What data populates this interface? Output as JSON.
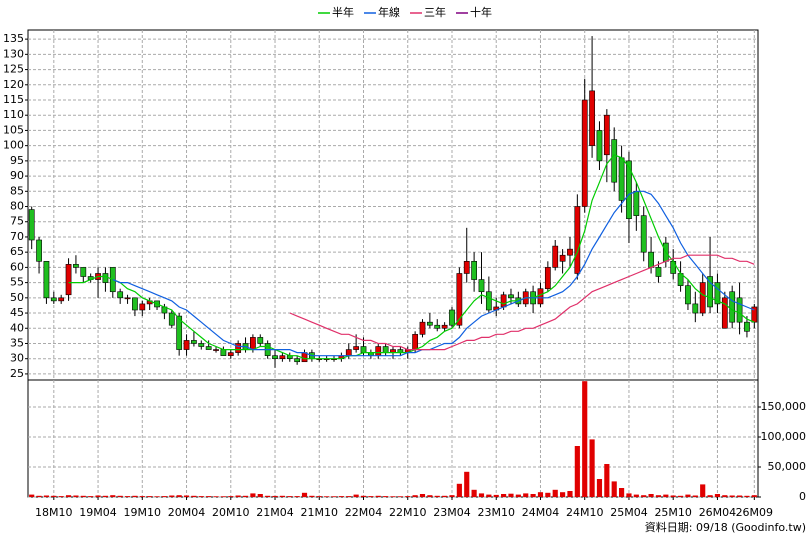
{
  "chart_data": {
    "type": "candlestick",
    "categories": [
      null,
      null,
      null,
      "18M10",
      null,
      null,
      null,
      null,
      null,
      "19M04",
      null,
      null,
      null,
      null,
      null,
      "19M10",
      null,
      null,
      null,
      null,
      null,
      "20M04",
      null,
      null,
      null,
      null,
      null,
      "20M10",
      null,
      null,
      null,
      null,
      null,
      "21M04",
      null,
      null,
      null,
      null,
      null,
      "21M10",
      null,
      null,
      null,
      null,
      null,
      "22M04",
      null,
      null,
      null,
      null,
      null,
      "22M10",
      null,
      null,
      null,
      null,
      null,
      "23M04",
      null,
      null,
      null,
      null,
      null,
      "23M10",
      null,
      null,
      null,
      null,
      null,
      "24M04",
      null,
      null,
      null,
      null,
      null,
      "24M10",
      null,
      null,
      null,
      null,
      null,
      "25M04",
      null,
      null,
      null,
      null,
      null,
      "25M10",
      null,
      null,
      null,
      null,
      null,
      "26M04",
      null,
      null,
      null,
      null,
      "26M09"
    ],
    "open": [
      79,
      69,
      62,
      50,
      49,
      51,
      61,
      60,
      57,
      56,
      58,
      60,
      52,
      50,
      50,
      46,
      48,
      49,
      47,
      45,
      44,
      33,
      36,
      35,
      34,
      33,
      33,
      31,
      32,
      35,
      33,
      37,
      35,
      31,
      30,
      31,
      30,
      29,
      32,
      30,
      30,
      30,
      30,
      31,
      33,
      34,
      32,
      31,
      34,
      32,
      33,
      32,
      33,
      38,
      42,
      41,
      40,
      46,
      41,
      58,
      62,
      56,
      52,
      46,
      47,
      51,
      50,
      48,
      52,
      48,
      53,
      60,
      62,
      64,
      58,
      80,
      100,
      105,
      97,
      102,
      96,
      95,
      85,
      77,
      65,
      60,
      68,
      62,
      58,
      54,
      48,
      45,
      57,
      55,
      40,
      52,
      50,
      42,
      42
    ],
    "high": [
      80,
      70,
      62,
      52,
      51,
      63,
      64,
      60,
      58,
      60,
      60,
      60,
      53,
      51,
      50,
      49,
      50,
      49,
      48,
      46,
      45,
      38,
      39,
      36,
      36,
      34,
      34,
      33,
      36,
      37,
      38,
      38,
      36,
      33,
      32,
      32,
      31,
      33,
      33,
      31,
      31,
      31,
      32,
      35,
      38,
      37,
      33,
      35,
      35,
      34,
      34,
      34,
      39,
      43,
      45,
      43,
      42,
      47,
      60,
      73,
      65,
      65,
      57,
      50,
      52,
      53,
      52,
      53,
      54,
      55,
      62,
      69,
      66,
      70,
      84,
      122,
      136,
      108,
      112,
      106,
      100,
      98,
      88,
      80,
      70,
      62,
      70,
      66,
      62,
      56,
      52,
      58,
      70,
      58,
      52,
      54,
      55,
      44,
      48
    ],
    "low": [
      66,
      58,
      48,
      48,
      48,
      49,
      58,
      55,
      55,
      50,
      52,
      50,
      48,
      48,
      44,
      44,
      46,
      46,
      43,
      40,
      31,
      31,
      34,
      33,
      33,
      32,
      31,
      30,
      31,
      32,
      32,
      34,
      30,
      27,
      29,
      29,
      28,
      29,
      29,
      29,
      29,
      29,
      29,
      30,
      32,
      31,
      30,
      30,
      31,
      30,
      31,
      30,
      32,
      37,
      40,
      39,
      39,
      40,
      40,
      55,
      52,
      48,
      45,
      44,
      46,
      48,
      47,
      47,
      45,
      47,
      52,
      59,
      58,
      60,
      56,
      78,
      96,
      92,
      88,
      85,
      78,
      68,
      72,
      62,
      58,
      55,
      60,
      56,
      52,
      46,
      42,
      44,
      45,
      45,
      40,
      40,
      38,
      37,
      40
    ],
    "close": [
      69,
      62,
      50,
      49,
      50,
      61,
      60,
      57,
      56,
      58,
      55,
      52,
      50,
      50,
      46,
      48,
      49,
      47,
      45,
      41,
      33,
      36,
      35,
      34,
      33,
      33,
      31,
      32,
      35,
      33,
      37,
      35,
      31,
      30,
      31,
      30,
      29,
      32,
      30,
      30,
      30,
      30,
      31,
      33,
      34,
      32,
      31,
      34,
      32,
      33,
      32,
      33,
      38,
      42,
      41,
      40,
      41,
      41,
      58,
      62,
      56,
      52,
      46,
      47,
      51,
      50,
      48,
      52,
      48,
      53,
      60,
      67,
      64,
      66,
      80,
      115,
      118,
      95,
      110,
      88,
      82,
      76,
      77,
      65,
      60,
      57,
      62,
      58,
      54,
      48,
      45,
      55,
      47,
      48,
      50,
      42,
      42,
      39,
      47
    ],
    "up_color": "#e00000",
    "down_color": "#1fbf1f",
    "ylim": [
      23,
      138
    ],
    "yticks": [
      25,
      30,
      35,
      40,
      45,
      50,
      55,
      60,
      65,
      70,
      75,
      80,
      85,
      90,
      95,
      100,
      105,
      110,
      115,
      120,
      125,
      130,
      135
    ],
    "grid": true,
    "series": [
      {
        "name": "半年",
        "color": "#00cc00",
        "values": [
          null,
          null,
          null,
          null,
          null,
          55,
          55,
          55,
          56,
          57,
          57,
          56,
          55,
          53,
          52,
          50,
          49,
          48,
          47,
          46,
          43,
          41,
          39,
          37,
          35,
          34,
          33,
          33,
          33,
          33,
          33,
          34,
          34,
          33,
          32,
          31,
          31,
          30,
          30,
          30,
          30,
          30,
          30,
          31,
          31,
          32,
          32,
          32,
          32,
          32,
          32,
          32,
          33,
          34,
          36,
          37,
          39,
          40,
          43,
          46,
          49,
          51,
          50,
          49,
          48,
          49,
          49,
          50,
          50,
          51,
          52,
          54,
          57,
          60,
          65,
          72,
          82,
          88,
          94,
          97,
          96,
          93,
          88,
          82,
          76,
          70,
          65,
          62,
          58,
          56,
          53,
          51,
          50,
          49,
          48,
          46,
          45,
          43,
          42
        ]
      },
      {
        "name": "年線",
        "color": "#1060e0",
        "values": [
          null,
          null,
          null,
          null,
          null,
          null,
          null,
          null,
          null,
          null,
          null,
          56,
          55,
          55,
          54,
          53,
          52,
          51,
          50,
          49,
          47,
          46,
          44,
          42,
          40,
          38,
          36,
          35,
          34,
          34,
          33,
          33,
          33,
          33,
          33,
          33,
          32,
          32,
          31,
          31,
          31,
          31,
          31,
          31,
          31,
          31,
          31,
          31,
          31,
          31,
          31,
          32,
          32,
          33,
          33,
          34,
          35,
          35,
          37,
          40,
          42,
          44,
          45,
          46,
          47,
          48,
          49,
          50,
          50,
          50,
          50,
          51,
          52,
          54,
          57,
          61,
          66,
          70,
          74,
          78,
          81,
          84,
          85,
          85,
          84,
          81,
          77,
          73,
          68,
          64,
          61,
          58,
          55,
          53,
          51,
          49,
          48,
          47,
          46
        ]
      },
      {
        "name": "三年",
        "color": "#e0306a",
        "values": [
          null,
          null,
          null,
          null,
          null,
          null,
          null,
          null,
          null,
          null,
          null,
          null,
          null,
          null,
          null,
          null,
          null,
          null,
          null,
          null,
          null,
          null,
          null,
          null,
          null,
          null,
          null,
          null,
          null,
          null,
          null,
          null,
          null,
          null,
          null,
          45,
          44,
          43,
          42,
          41,
          40,
          39,
          38,
          38,
          37,
          36,
          36,
          35,
          35,
          34,
          34,
          33,
          33,
          33,
          33,
          33,
          33,
          34,
          35,
          36,
          36,
          37,
          37,
          38,
          38,
          39,
          39,
          40,
          40,
          41,
          42,
          43,
          45,
          47,
          48,
          50,
          52,
          53,
          54,
          55,
          56,
          57,
          58,
          59,
          60,
          61,
          62,
          63,
          63,
          64,
          64,
          64,
          64,
          64,
          63,
          63,
          62,
          62,
          61
        ]
      },
      {
        "name": "十年",
        "color": "#800080"
      }
    ],
    "volume": {
      "color": "#e00000",
      "values": [
        4000,
        2000,
        2500,
        2000,
        1500,
        3000,
        2500,
        2000,
        1500,
        2500,
        2000,
        3000,
        2000,
        1500,
        2000,
        1500,
        1500,
        1200,
        1500,
        2500,
        3000,
        2500,
        2000,
        1500,
        1500,
        1200,
        1200,
        1500,
        2500,
        2000,
        6000,
        5000,
        2000,
        1800,
        2000,
        1500,
        1500,
        7000,
        2000,
        1500,
        1200,
        1200,
        1500,
        1500,
        4000,
        2000,
        1500,
        2000,
        1500,
        1200,
        1200,
        1500,
        3000,
        5000,
        3000,
        2000,
        2000,
        3000,
        22000,
        42000,
        12000,
        6000,
        4000,
        3500,
        5000,
        5500,
        4000,
        6000,
        5000,
        8000,
        7000,
        12000,
        8000,
        10000,
        85000,
        193000,
        96000,
        30000,
        55000,
        26000,
        15000,
        6000,
        4000,
        3000,
        5000,
        3000,
        4000,
        2500,
        2000,
        4000,
        2500,
        21000,
        3000,
        5000,
        3000,
        2500,
        2500,
        2000,
        3000
      ],
      "ylim": [
        0,
        195000
      ],
      "yticks": [
        0,
        {
          "value": 50000,
          "label": "50,000"
        },
        {
          "value": 100000,
          "label": "100,000"
        },
        {
          "value": 150000,
          "label": "150,000"
        }
      ]
    },
    "footer": "資料日期: 09/18 (Goodinfo.tw)"
  }
}
